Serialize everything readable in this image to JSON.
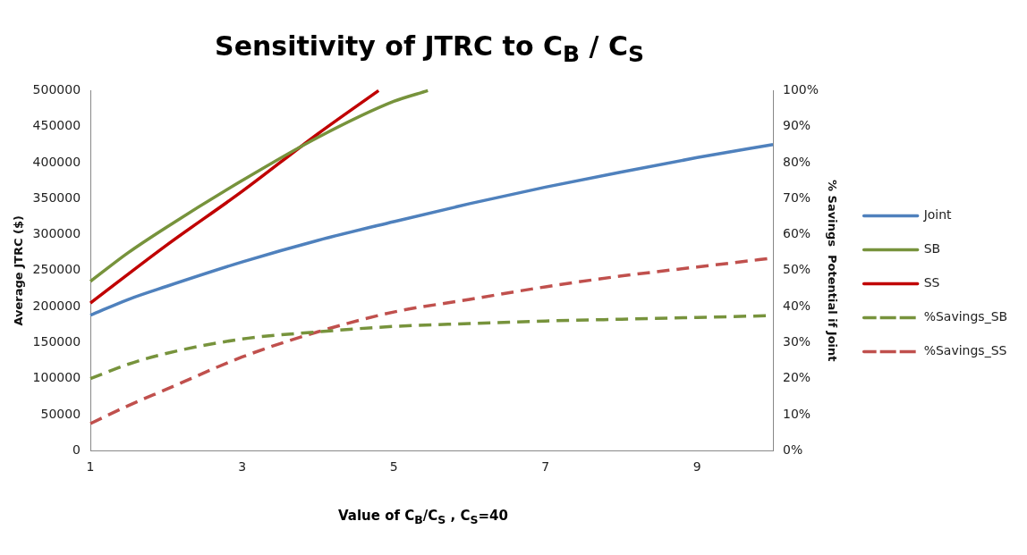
{
  "chart_data": {
    "type": "line",
    "title": "Sensitivity of JTRC to C$_{B}$ / C$_{S}$",
    "xlabel": "Value of C$_{B}$/C$_{S}$ , C$_{S}$=40",
    "ylabel": "Average JTRC ($)",
    "y2label": "% Savings  Potential if Joint",
    "xlim": [
      1,
      10
    ],
    "xticks": [
      1,
      3,
      5,
      7,
      9
    ],
    "ylim": [
      0,
      500000
    ],
    "yticks": [
      0,
      50000,
      100000,
      150000,
      200000,
      250000,
      300000,
      350000,
      400000,
      450000,
      500000
    ],
    "y2lim": [
      0,
      100
    ],
    "y2ticks": [
      {
        "value": 0,
        "label": "0%"
      },
      {
        "value": 10,
        "label": "10%"
      },
      {
        "value": 20,
        "label": "20%"
      },
      {
        "value": 30,
        "label": "30%"
      },
      {
        "value": 40,
        "label": "40%"
      },
      {
        "value": 50,
        "label": "50%"
      },
      {
        "value": 60,
        "label": "60%"
      },
      {
        "value": 70,
        "label": "70%"
      },
      {
        "value": 80,
        "label": "80%"
      },
      {
        "value": 90,
        "label": "90%"
      },
      {
        "value": 100,
        "label": "100%"
      }
    ],
    "grid": false,
    "legend": "right",
    "marker": "none",
    "series": [
      {
        "name": "Joint",
        "color": "#4f81bd",
        "line_style": "solid",
        "x": [
          1,
          1.5,
          2,
          3,
          4,
          5,
          6,
          7,
          8,
          9,
          10
        ],
        "values": [
          188000,
          210000,
          228000,
          262000,
          292000,
          318000,
          343000,
          366000,
          387000,
          407000,
          425000
        ]
      },
      {
        "name": "SB",
        "color": "#77933c",
        "line_style": "solid",
        "x": [
          1,
          1.5,
          2,
          3,
          4,
          5,
          5.45
        ],
        "values": [
          235000,
          275000,
          310000,
          375000,
          435000,
          485000,
          500000
        ]
      },
      {
        "name": "SS",
        "color": "#c00000",
        "line_style": "solid",
        "x": [
          1,
          2,
          3,
          4,
          4.8
        ],
        "values": [
          205000,
          285000,
          360000,
          440000,
          500000
        ]
      },
      {
        "name": "%Savings_SB",
        "color": "#77933c",
        "line_style": "dashed",
        "axis": "y2",
        "x": [
          1,
          1.5,
          2,
          3,
          4,
          5,
          6,
          7,
          8,
          9,
          10
        ],
        "values": [
          20,
          24,
          27,
          31,
          33,
          34.5,
          35.3,
          36,
          36.5,
          37,
          37.5
        ]
      },
      {
        "name": "%Savings_SS",
        "color": "#c0504d",
        "line_style": "dashed",
        "axis": "y2",
        "x": [
          1,
          1.5,
          2,
          3,
          4,
          5,
          6,
          7,
          8,
          9,
          10
        ],
        "values": [
          7.5,
          12.5,
          17,
          26,
          33,
          38.5,
          42,
          45.5,
          48.5,
          51,
          53.5
        ]
      }
    ]
  }
}
